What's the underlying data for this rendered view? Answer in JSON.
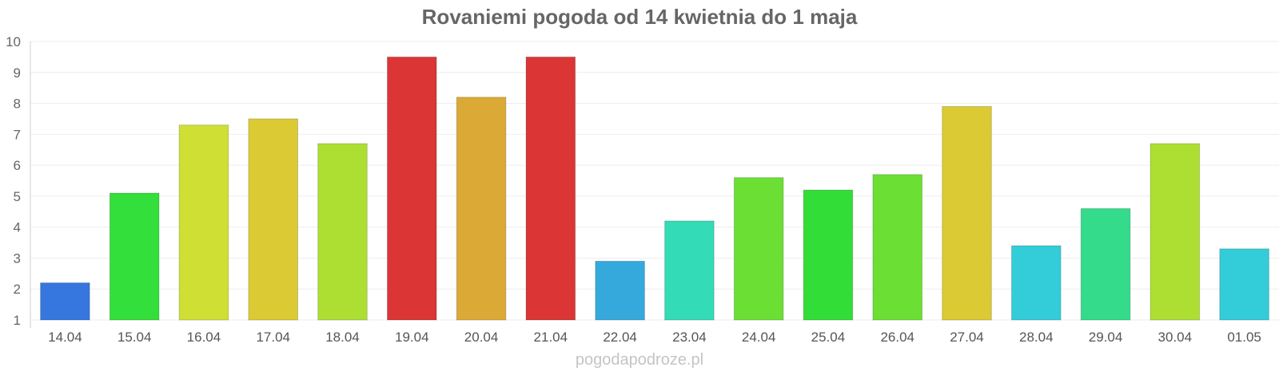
{
  "chart_data": {
    "type": "bar",
    "title": "Rovaniemi pogoda od 14 kwietnia do 1 maja",
    "xlabel": "",
    "ylabel": "",
    "ylim": [
      1,
      10
    ],
    "yticks": [
      1,
      2,
      3,
      4,
      5,
      6,
      7,
      8,
      9,
      10
    ],
    "grid": true,
    "legend": "none",
    "categories": [
      "14.04",
      "15.04",
      "16.04",
      "17.04",
      "18.04",
      "19.04",
      "20.04",
      "21.04",
      "22.04",
      "23.04",
      "24.04",
      "25.04",
      "26.04",
      "27.04",
      "28.04",
      "29.04",
      "30.04",
      "01.05"
    ],
    "values": [
      2.2,
      5.1,
      7.3,
      7.5,
      6.7,
      9.5,
      8.2,
      9.5,
      2.9,
      4.2,
      5.6,
      5.2,
      5.7,
      7.9,
      3.4,
      4.6,
      6.7,
      3.3
    ],
    "colors": [
      "#3577de",
      "#33df3a",
      "#cfdf33",
      "#dbca33",
      "#addf33",
      "#db3535",
      "#dba935",
      "#db3535",
      "#36a9dc",
      "#33dbb6",
      "#6bdf33",
      "#33dd37",
      "#6bdf33",
      "#dbca33",
      "#33ccd9",
      "#33db8a",
      "#addf33",
      "#33ccd9"
    ]
  },
  "watermark": "pogodapodroze.pl"
}
